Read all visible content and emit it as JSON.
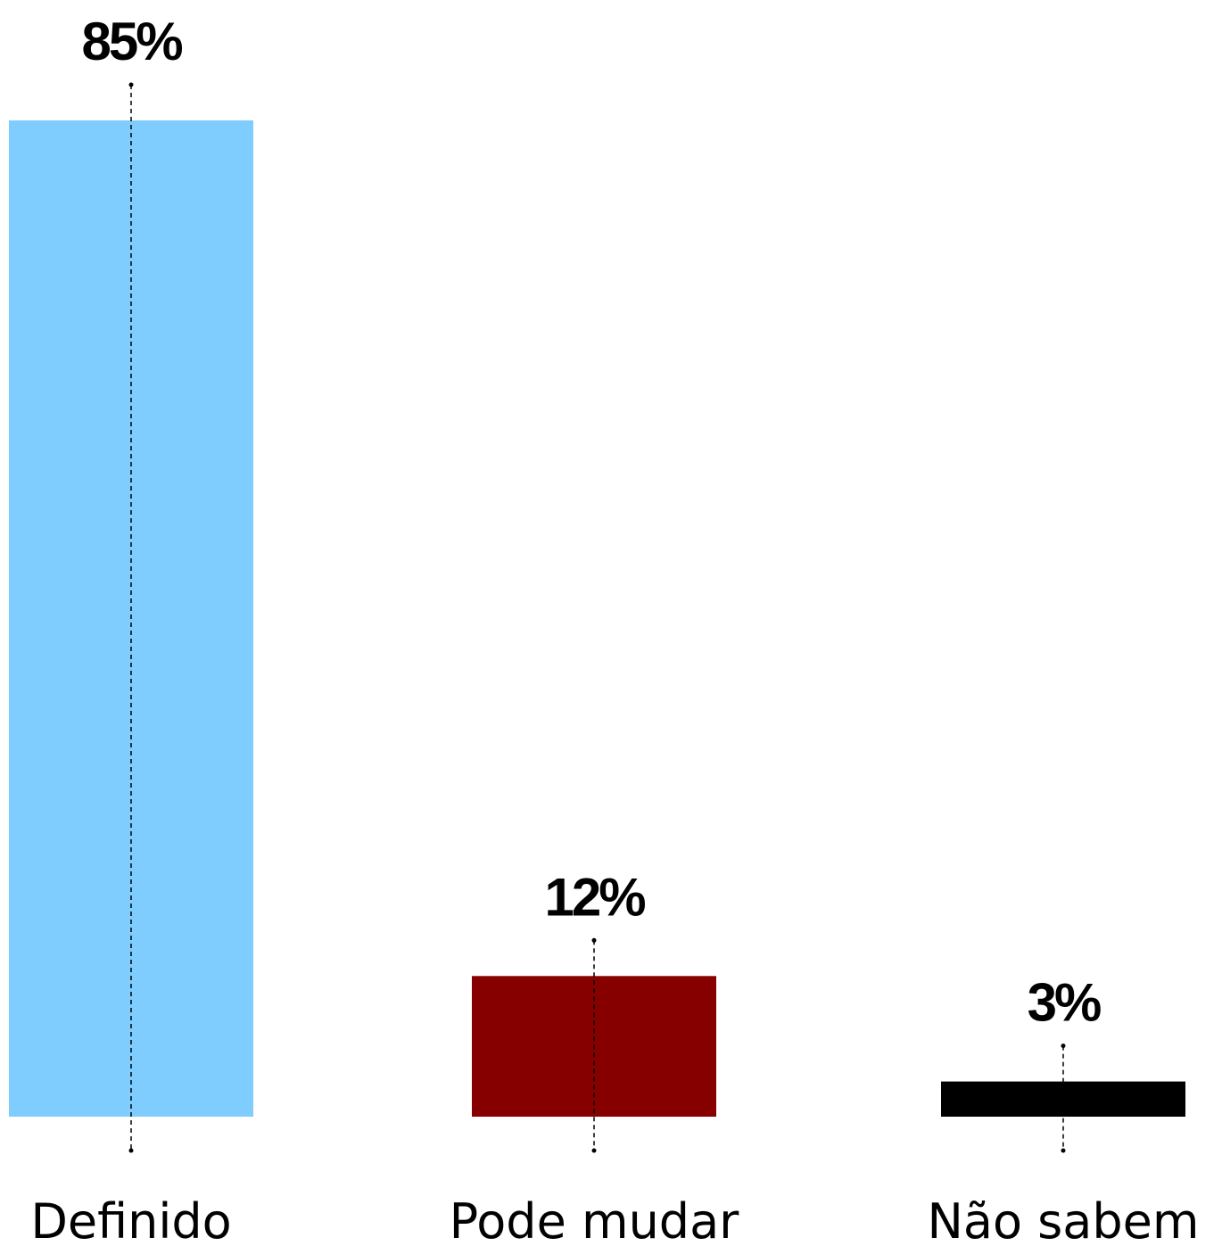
{
  "chart_data": {
    "type": "bar",
    "categories": [
      "Definido",
      "Pode mudar",
      "Não sabem"
    ],
    "values": [
      85,
      12,
      3
    ],
    "value_labels": [
      "85%",
      "12%",
      "3%"
    ],
    "colors": [
      "#7fcdff",
      "#870000",
      "#000000"
    ]
  }
}
